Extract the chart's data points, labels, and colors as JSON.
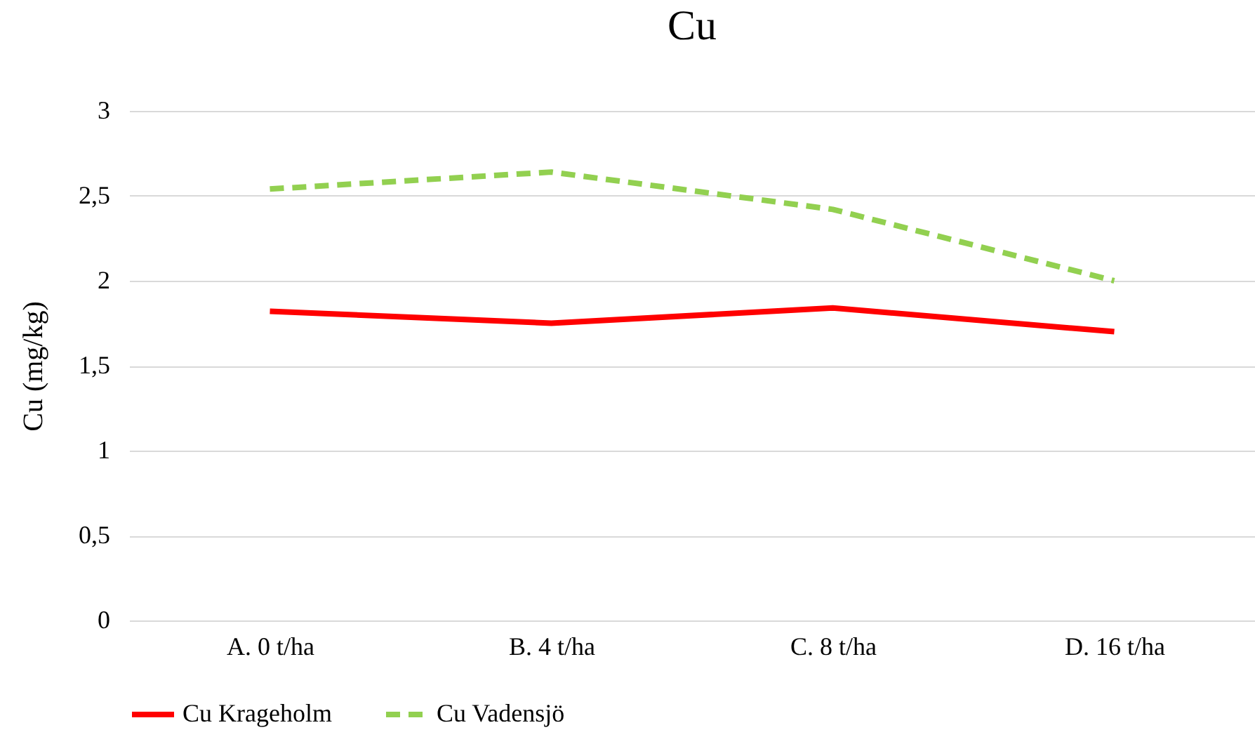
{
  "chart_data": {
    "type": "line",
    "title": "Cu",
    "ylabel": "Cu (mg/kg)",
    "categories": [
      "A. 0 t/ha",
      "B. 4 t/ha",
      "C. 8 t/ha",
      "D. 16 t/ha"
    ],
    "series": [
      {
        "name": "Cu Krageholm",
        "color": "#ff0000",
        "line_style": "solid",
        "values": [
          1.82,
          1.75,
          1.84,
          1.7
        ]
      },
      {
        "name": "Cu Vadensjö",
        "color": "#92d050",
        "line_style": "dashed",
        "values": [
          2.54,
          2.64,
          2.42,
          2.0
        ]
      }
    ],
    "ylim": [
      0,
      3
    ],
    "yticks": [
      0,
      {
        "value": 0.5,
        "label": "0,5"
      },
      1,
      {
        "value": 1.5,
        "label": "1,5"
      },
      2,
      {
        "value": 2.5,
        "label": "2,5"
      },
      3
    ],
    "grid": "y",
    "legend": "bottom",
    "marker": "none"
  }
}
